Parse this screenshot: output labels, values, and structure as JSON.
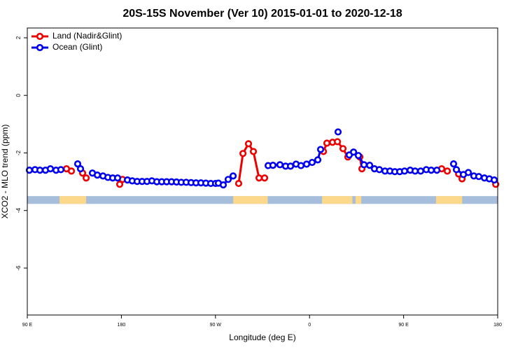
{
  "chart_data": {
    "type": "line",
    "title": "20S-15S November (Ver 10)   2015-01-01 to 2020-12-18",
    "x_label": "Longitude (deg E)",
    "y_label": "XCO2 - MLO trend (ppm)",
    "xlim": [
      90,
      540
    ],
    "ylim": [
      -7.63,
      2.34
    ],
    "xticks": [
      {
        "value": 90,
        "label": "90 E"
      },
      {
        "value": 180,
        "label": "180"
      },
      {
        "value": 270,
        "label": "90 W"
      },
      {
        "value": 360,
        "label": "0"
      },
      {
        "value": 450,
        "label": "90 E"
      },
      {
        "value": 540,
        "label": "180"
      }
    ],
    "yticks": [
      2,
      0,
      -2,
      -4,
      -6
    ],
    "legend": "top-left",
    "land_mask": {
      "ylim": [
        -3.77,
        -3.5
      ],
      "ocean_color": "#a6bddb",
      "land_color": "#fcd98a",
      "land_ranges": [
        [
          120.8,
          146.3
        ],
        [
          287,
          320
        ],
        [
          372,
          401
        ],
        [
          404,
          409.5
        ],
        [
          481,
          506
        ]
      ]
    },
    "series": [
      {
        "name": "Land (Nadir&Glint)",
        "color": "#ee0000",
        "x": [
          127.5,
          132.2,
          142.9,
          146.3,
          178.4,
          181.1,
          292.2,
          296.3,
          301.6,
          306.3,
          311.7,
          317.0,
          373.3,
          376.6,
          382.0,
          386.7,
          392.0,
          396.7,
          408.1,
          410.1,
          486.4,
          491.8,
          502.6,
          505.9,
          538.1
        ],
        "values": [
          -2.55,
          -2.63,
          -2.7,
          -2.87,
          -3.09,
          -2.92,
          -3.06,
          -2.02,
          -1.68,
          -1.95,
          -2.87,
          -2.87,
          -1.95,
          -1.66,
          -1.63,
          -1.61,
          -1.85,
          -2.14,
          -2.14,
          -2.55,
          -2.55,
          -2.63,
          -2.73,
          -2.9,
          -3.09
        ]
      },
      {
        "name": "Ocean (Glint)",
        "color": "#0000ee",
        "x": [
          92.0,
          97.4,
          102.1,
          107.4,
          112.1,
          117.5,
          122.1,
          138.2,
          140.9,
          152.3,
          157.0,
          162.4,
          167.1,
          171.7,
          176.4,
          185.8,
          190.4,
          195.1,
          199.8,
          204.5,
          209.2,
          213.9,
          218.6,
          223.3,
          228.0,
          232.7,
          237.3,
          242.0,
          246.7,
          251.4,
          256.1,
          260.8,
          265.5,
          270.1,
          272.8,
          277.5,
          282.2,
          286.9,
          320.4,
          325.0,
          331.7,
          337.1,
          341.8,
          347.1,
          351.8,
          357.2,
          362.5,
          367.9,
          370.6,
          387.3,
          398.0,
          402.1,
          406.7,
          412.1,
          417.5,
          422.1,
          426.8,
          432.2,
          436.9,
          441.6,
          446.3,
          450.9,
          456.3,
          461.0,
          466.3,
          471.7,
          476.4,
          481.8,
          497.8,
          500.5,
          507.2,
          511.9,
          517.2,
          521.9,
          527.3,
          532.0,
          536.7
        ],
        "values": [
          -2.6,
          -2.58,
          -2.6,
          -2.6,
          -2.55,
          -2.6,
          -2.58,
          -2.38,
          -2.55,
          -2.7,
          -2.77,
          -2.8,
          -2.85,
          -2.87,
          -2.87,
          -2.94,
          -2.97,
          -2.99,
          -2.99,
          -2.99,
          -2.97,
          -3.0,
          -3.0,
          -3.0,
          -3.0,
          -3.01,
          -3.02,
          -3.02,
          -3.03,
          -3.04,
          -3.04,
          -3.05,
          -3.06,
          -3.06,
          -3.05,
          -3.11,
          -2.92,
          -2.8,
          -2.44,
          -2.43,
          -2.41,
          -2.46,
          -2.46,
          -2.39,
          -2.44,
          -2.39,
          -2.33,
          -2.24,
          -1.88,
          -1.27,
          -2.07,
          -1.97,
          -2.09,
          -2.41,
          -2.43,
          -2.55,
          -2.58,
          -2.63,
          -2.63,
          -2.65,
          -2.65,
          -2.63,
          -2.6,
          -2.63,
          -2.63,
          -2.58,
          -2.6,
          -2.6,
          -2.38,
          -2.58,
          -2.75,
          -2.68,
          -2.8,
          -2.82,
          -2.87,
          -2.9,
          -2.94
        ]
      }
    ]
  }
}
